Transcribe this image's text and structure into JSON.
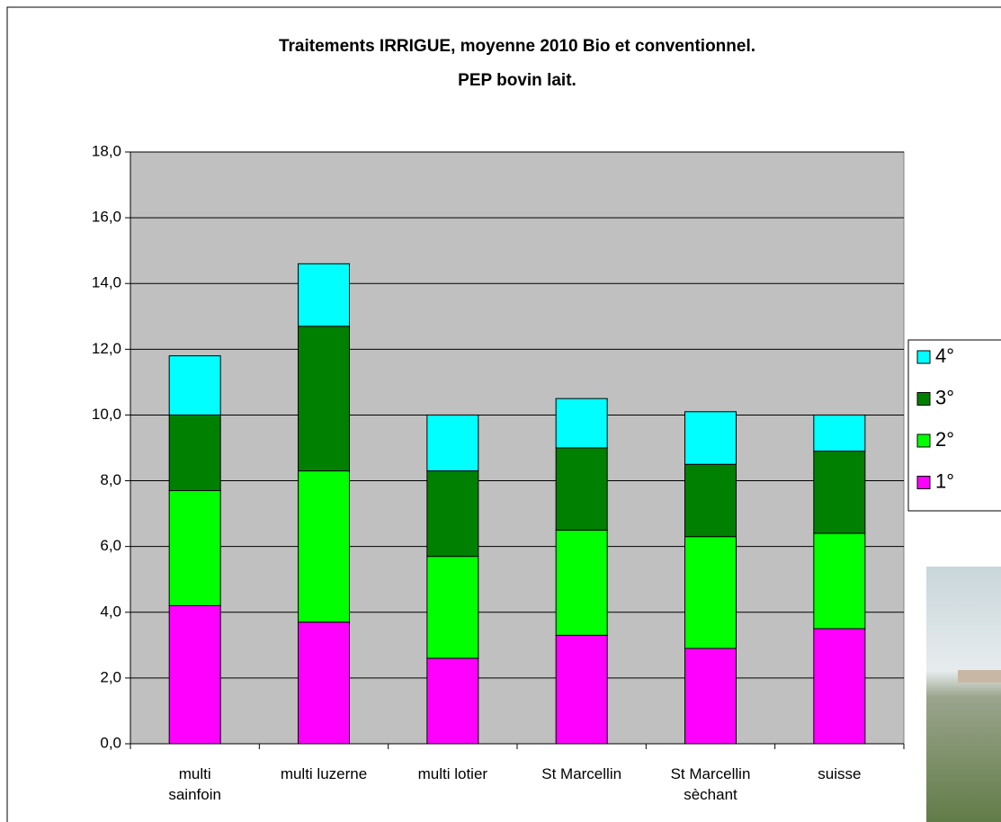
{
  "chart_data": {
    "type": "stacked-bar",
    "title": [
      "Traitements IRRIGUE, moyenne 2010 Bio et conventionnel.",
      "PEP bovin lait."
    ],
    "categories": [
      "multi\nsainfoin",
      "multi luzerne",
      "multi lotier",
      "St Marcellin",
      "St Marcellin\nsèchant",
      "suisse"
    ],
    "series": [
      {
        "name": "1°",
        "color": "#ff00ff",
        "values": [
          4.2,
          3.7,
          2.6,
          3.3,
          2.9,
          3.5
        ]
      },
      {
        "name": "2°",
        "color": "#00ff00",
        "values": [
          3.5,
          4.6,
          3.1,
          3.2,
          3.4,
          2.9
        ]
      },
      {
        "name": "3°",
        "color": "#008000",
        "values": [
          2.3,
          4.4,
          2.6,
          2.5,
          2.2,
          2.5
        ]
      },
      {
        "name": "4°",
        "color": "#00ffff",
        "values": [
          1.8,
          1.9,
          1.7,
          1.5,
          1.6,
          1.1
        ]
      }
    ],
    "ylim": [
      0,
      18
    ],
    "yticks": [
      {
        "value": 0,
        "label": "0,0"
      },
      {
        "value": 2,
        "label": "2,0"
      },
      {
        "value": 4,
        "label": "4,0"
      },
      {
        "value": 6,
        "label": "6,0"
      },
      {
        "value": 8,
        "label": "8,0"
      },
      {
        "value": 10,
        "label": "10,0"
      },
      {
        "value": 12,
        "label": "12,0"
      },
      {
        "value": 14,
        "label": "14,0"
      },
      {
        "value": 16,
        "label": "16,0"
      },
      {
        "value": 18,
        "label": "18,0"
      }
    ],
    "grid": true,
    "plot_background": "#c0c0c0",
    "legend": "right"
  }
}
